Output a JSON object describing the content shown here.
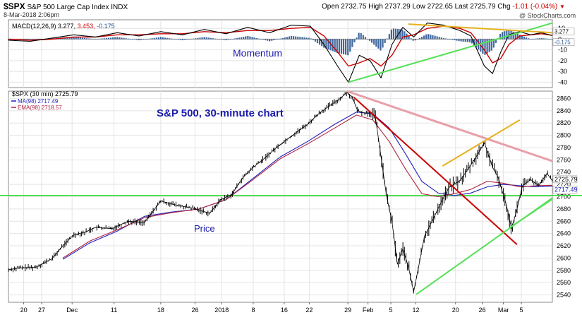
{
  "header": {
    "symbol": "$SPX",
    "name": "S&P 500 Large Cap Index",
    "exchange": "INDX",
    "date": "8-Mar-2018 2:06pm",
    "open_label": "Open",
    "open": "2732.75",
    "high_label": "High",
    "high": "2737.29",
    "low_label": "Low",
    "low": "2722.65",
    "last_label": "Last",
    "last": "2725.79",
    "chg_label": "Chg",
    "chg": "-1.01 (-0.04%)",
    "copyright": "@ StockCharts.com"
  },
  "colors": {
    "price": "#000000",
    "ma98": "#1f1fbf",
    "ema98": "#b0233f",
    "macd_line": "#000000",
    "signal_line": "#cc0000",
    "histogram": "#1f4e8c",
    "h_line": "#33dd33",
    "support": "#55e055",
    "resistance": "#cc0000",
    "resistance_faded": "#e8a0a8",
    "trend_gold": "#e6b21e",
    "annotation": "#1a1aaa",
    "grid": "#e4e4e4"
  },
  "chart_data": [
    {
      "type": "line",
      "panel": "indicator",
      "title": "MACD(12,26,9) 3.277, 3.453, -0.175",
      "legend": {
        "label": "MACD(12,26,9)",
        "macd": "3.277",
        "signal": "3.453",
        "hist": "-0.175"
      },
      "annotation": "Momentum",
      "y_ticks": [
        10,
        0,
        -10,
        -20,
        -30,
        -40
      ],
      "ylim": [
        -45,
        18
      ],
      "last_labels": [
        "3.277",
        "-0.175"
      ],
      "macd_points": [
        [
          0,
          -1
        ],
        [
          0.04,
          -2
        ],
        [
          0.08,
          1
        ],
        [
          0.12,
          4
        ],
        [
          0.16,
          2
        ],
        [
          0.2,
          6
        ],
        [
          0.24,
          3
        ],
        [
          0.28,
          7
        ],
        [
          0.32,
          4
        ],
        [
          0.36,
          9
        ],
        [
          0.4,
          5
        ],
        [
          0.44,
          11
        ],
        [
          0.48,
          6
        ],
        [
          0.52,
          13
        ],
        [
          0.555,
          12
        ],
        [
          0.58,
          -5
        ],
        [
          0.605,
          -25
        ],
        [
          0.625,
          -40
        ],
        [
          0.645,
          -15
        ],
        [
          0.665,
          -20
        ],
        [
          0.685,
          -36
        ],
        [
          0.705,
          -5
        ],
        [
          0.725,
          11
        ],
        [
          0.745,
          2
        ],
        [
          0.77,
          15
        ],
        [
          0.8,
          13
        ],
        [
          0.83,
          8
        ],
        [
          0.85,
          3
        ],
        [
          0.875,
          -25
        ],
        [
          0.89,
          -32
        ],
        [
          0.905,
          -12
        ],
        [
          0.92,
          4
        ],
        [
          0.94,
          7
        ],
        [
          0.96,
          4
        ],
        [
          0.98,
          6
        ],
        [
          1,
          3.3
        ]
      ],
      "signal_points": [
        [
          0,
          0
        ],
        [
          0.04,
          -1
        ],
        [
          0.08,
          0
        ],
        [
          0.12,
          2
        ],
        [
          0.16,
          2
        ],
        [
          0.2,
          4
        ],
        [
          0.24,
          4
        ],
        [
          0.28,
          5
        ],
        [
          0.32,
          5
        ],
        [
          0.36,
          7
        ],
        [
          0.4,
          6
        ],
        [
          0.44,
          8
        ],
        [
          0.48,
          8
        ],
        [
          0.52,
          10
        ],
        [
          0.555,
          11
        ],
        [
          0.58,
          3
        ],
        [
          0.605,
          -12
        ],
        [
          0.625,
          -25
        ],
        [
          0.645,
          -22
        ],
        [
          0.665,
          -18
        ],
        [
          0.685,
          -25
        ],
        [
          0.705,
          -15
        ],
        [
          0.725,
          2
        ],
        [
          0.745,
          4
        ],
        [
          0.77,
          10
        ],
        [
          0.8,
          12
        ],
        [
          0.83,
          10
        ],
        [
          0.85,
          6
        ],
        [
          0.875,
          -10
        ],
        [
          0.89,
          -22
        ],
        [
          0.905,
          -18
        ],
        [
          0.92,
          -5
        ],
        [
          0.94,
          3
        ],
        [
          0.96,
          4
        ],
        [
          0.98,
          5
        ],
        [
          1,
          3.5
        ]
      ],
      "trendlines": [
        {
          "color_key": "support",
          "from": [
            0.625,
            -40
          ],
          "to": [
            1,
            15
          ]
        },
        {
          "color_key": "trend_gold",
          "from": [
            0.735,
            14
          ],
          "to": [
            1,
            6
          ]
        }
      ]
    },
    {
      "type": "line",
      "panel": "price",
      "title": "$SPX (30 min) 2725.79",
      "annotation_title": "S&P 500, 30-minute chart",
      "annotation_price": "Price",
      "series": [
        {
          "name": "$SPX (30 min)",
          "last": "2725.79"
        },
        {
          "name": "MA(98)",
          "last": "2717.49"
        },
        {
          "name": "EMA(98)",
          "last": "2718.57"
        }
      ],
      "y_ticks": [
        2540,
        2560,
        2580,
        2600,
        2620,
        2640,
        2660,
        2680,
        2700,
        2720,
        2740,
        2760,
        2780,
        2800,
        2820,
        2840,
        2860
      ],
      "ylim": [
        2528,
        2872
      ],
      "last_labels": [
        "2725.79",
        "2717.49"
      ],
      "x_ticks": [
        {
          "label": "20",
          "pos": 0.028
        },
        {
          "label": "27",
          "pos": 0.061
        },
        {
          "label": "Dec",
          "pos": 0.117
        },
        {
          "label": "11",
          "pos": 0.194
        },
        {
          "label": "18",
          "pos": 0.28
        },
        {
          "label": "26",
          "pos": 0.343
        },
        {
          "label": "2018",
          "pos": 0.392
        },
        {
          "label": "8",
          "pos": 0.45
        },
        {
          "label": "16",
          "pos": 0.507
        },
        {
          "label": "22",
          "pos": 0.553
        },
        {
          "label": "29",
          "pos": 0.624
        },
        {
          "label": "Feb",
          "pos": 0.661
        },
        {
          "label": "5",
          "pos": 0.703
        },
        {
          "label": "12",
          "pos": 0.749
        },
        {
          "label": "20",
          "pos": 0.822
        },
        {
          "label": "26",
          "pos": 0.871
        },
        {
          "label": "Mar",
          "pos": 0.91
        },
        {
          "label": "5",
          "pos": 0.943
        }
      ],
      "price_points": [
        [
          0,
          2581
        ],
        [
          0.02,
          2584
        ],
        [
          0.05,
          2585
        ],
        [
          0.08,
          2599
        ],
        [
          0.1,
          2620
        ],
        [
          0.12,
          2638
        ],
        [
          0.14,
          2642
        ],
        [
          0.16,
          2650
        ],
        [
          0.19,
          2648
        ],
        [
          0.22,
          2660
        ],
        [
          0.25,
          2658
        ],
        [
          0.28,
          2693
        ],
        [
          0.31,
          2686
        ],
        [
          0.34,
          2681
        ],
        [
          0.37,
          2673
        ],
        [
          0.39,
          2695
        ],
        [
          0.41,
          2703
        ],
        [
          0.43,
          2730
        ],
        [
          0.45,
          2748
        ],
        [
          0.47,
          2762
        ],
        [
          0.49,
          2778
        ],
        [
          0.51,
          2792
        ],
        [
          0.53,
          2805
        ],
        [
          0.55,
          2818
        ],
        [
          0.57,
          2835
        ],
        [
          0.59,
          2848
        ],
        [
          0.61,
          2860
        ],
        [
          0.622,
          2870
        ],
        [
          0.632,
          2862
        ],
        [
          0.642,
          2840
        ],
        [
          0.655,
          2836
        ],
        [
          0.667,
          2837
        ],
        [
          0.675,
          2828
        ],
        [
          0.685,
          2765
        ],
        [
          0.695,
          2702
        ],
        [
          0.705,
          2660
        ],
        [
          0.715,
          2590
        ],
        [
          0.725,
          2615
        ],
        [
          0.735,
          2587
        ],
        [
          0.745,
          2545
        ],
        [
          0.755,
          2590
        ],
        [
          0.765,
          2636
        ],
        [
          0.78,
          2662
        ],
        [
          0.795,
          2690
        ],
        [
          0.81,
          2715
        ],
        [
          0.83,
          2726
        ],
        [
          0.845,
          2745
        ],
        [
          0.86,
          2765
        ],
        [
          0.875,
          2788
        ],
        [
          0.89,
          2748
        ],
        [
          0.9,
          2732
        ],
        [
          0.915,
          2688
        ],
        [
          0.925,
          2648
        ],
        [
          0.935,
          2680
        ],
        [
          0.945,
          2718
        ],
        [
          0.96,
          2728
        ],
        [
          0.975,
          2718
        ],
        [
          0.99,
          2738
        ],
        [
          1,
          2726
        ]
      ],
      "ma98_points": [
        [
          0.1,
          2598
        ],
        [
          0.15,
          2625
        ],
        [
          0.2,
          2644
        ],
        [
          0.25,
          2668
        ],
        [
          0.3,
          2675
        ],
        [
          0.35,
          2680
        ],
        [
          0.4,
          2695
        ],
        [
          0.45,
          2730
        ],
        [
          0.5,
          2765
        ],
        [
          0.55,
          2790
        ],
        [
          0.6,
          2818
        ],
        [
          0.64,
          2838
        ],
        [
          0.67,
          2835
        ],
        [
          0.7,
          2812
        ],
        [
          0.73,
          2770
        ],
        [
          0.76,
          2725
        ],
        [
          0.79,
          2706
        ],
        [
          0.82,
          2702
        ],
        [
          0.85,
          2706
        ],
        [
          0.88,
          2716
        ],
        [
          0.91,
          2720
        ],
        [
          0.94,
          2718
        ],
        [
          0.97,
          2716
        ],
        [
          1,
          2717.49
        ]
      ],
      "ema98_points": [
        [
          0.1,
          2600
        ],
        [
          0.15,
          2628
        ],
        [
          0.2,
          2646
        ],
        [
          0.25,
          2666
        ],
        [
          0.3,
          2674
        ],
        [
          0.35,
          2680
        ],
        [
          0.4,
          2695
        ],
        [
          0.45,
          2728
        ],
        [
          0.5,
          2762
        ],
        [
          0.55,
          2786
        ],
        [
          0.6,
          2812
        ],
        [
          0.64,
          2833
        ],
        [
          0.67,
          2825
        ],
        [
          0.7,
          2790
        ],
        [
          0.73,
          2745
        ],
        [
          0.76,
          2705
        ],
        [
          0.79,
          2700
        ],
        [
          0.82,
          2705
        ],
        [
          0.85,
          2712
        ],
        [
          0.88,
          2725
        ],
        [
          0.91,
          2722
        ],
        [
          0.94,
          2716
        ],
        [
          0.97,
          2718
        ],
        [
          1,
          2718.57
        ]
      ],
      "hline_value": 2702,
      "trendlines": [
        {
          "color_key": "resistance_faded",
          "from": [
            0.622,
            2872
          ],
          "to": [
            1,
            2758
          ]
        },
        {
          "color_key": "resistance",
          "from": [
            0.635,
            2862
          ],
          "to": [
            0.935,
            2622
          ]
        },
        {
          "color_key": "trend_gold",
          "from": [
            0.798,
            2750
          ],
          "to": [
            0.94,
            2825
          ]
        },
        {
          "color_key": "support",
          "from": [
            0.75,
            2541
          ],
          "to": [
            1,
            2698
          ]
        },
        {
          "color_key": "support",
          "from": [
            0.922,
            2650
          ],
          "to": [
            1,
            2696
          ]
        }
      ]
    }
  ]
}
